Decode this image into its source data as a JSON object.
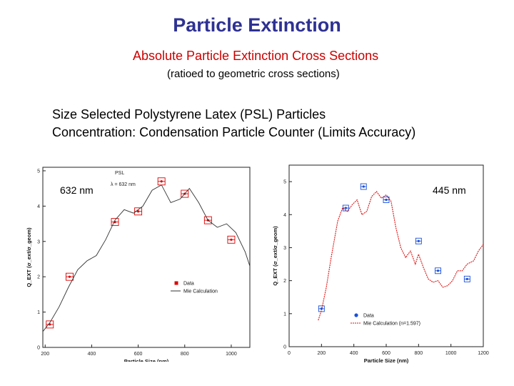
{
  "slide": {
    "title": "Particle Extinction",
    "subtitle": "Absolute Particle Extinction Cross Sections",
    "note": "(ratioed to geometric cross sections)",
    "desc_line1": "Size Selected Polystyrene Latex (PSL) Particles",
    "desc_line2": "Concentration: Condensation Particle Counter  (Limits Accuracy)",
    "label_left": "632 nm",
    "label_right": "445 nm"
  },
  "chart_data": [
    {
      "type": "scatter",
      "title": "PSL",
      "annotation": "λ = 632 nm",
      "xlabel": "Particle Size (nm)",
      "ylabel": "Q_EXT (σ_ext/σ_geom)",
      "xlim": [
        190,
        1080
      ],
      "ylim": [
        0,
        5.1
      ],
      "xticks": [
        200,
        400,
        600,
        800,
        1000
      ],
      "yticks": [
        0,
        1,
        2,
        3,
        4,
        5
      ],
      "legend_position": "lower-right",
      "colors": {
        "data": "#dd0000",
        "calc": "#333333"
      },
      "series": [
        {
          "name": "Data",
          "kind": "points",
          "x": [
            220,
            305,
            500,
            600,
            700,
            800,
            900,
            1000
          ],
          "y": [
            0.65,
            2.0,
            3.55,
            3.85,
            4.7,
            4.35,
            3.6,
            3.05
          ]
        },
        {
          "name": "Mie Calculation",
          "kind": "line",
          "x": [
            190,
            220,
            260,
            300,
            340,
            380,
            420,
            460,
            500,
            540,
            580,
            620,
            660,
            700,
            740,
            780,
            820,
            860,
            900,
            940,
            980,
            1020,
            1060,
            1080
          ],
          "y": [
            0.45,
            0.7,
            1.15,
            1.7,
            2.2,
            2.45,
            2.6,
            3.05,
            3.6,
            3.9,
            3.8,
            4.0,
            4.45,
            4.6,
            4.1,
            4.2,
            4.5,
            4.1,
            3.6,
            3.4,
            3.5,
            3.25,
            2.7,
            2.3
          ]
        }
      ]
    },
    {
      "type": "scatter",
      "xlabel": "Particle Size (nm)",
      "ylabel": "Q_EXT (σ_ext/σ_geom)",
      "xlim": [
        0,
        1200
      ],
      "ylim": [
        0,
        5.5
      ],
      "xticks": [
        0,
        200,
        400,
        600,
        800,
        1000,
        1200
      ],
      "yticks": [
        0,
        1,
        2,
        3,
        4,
        5
      ],
      "legend_position": "lower-left",
      "colors": {
        "data": "#1a4fd8",
        "calc": "#dd1111"
      },
      "series": [
        {
          "name": "Data",
          "kind": "points",
          "x": [
            200,
            350,
            460,
            600,
            800,
            920,
            1100
          ],
          "y": [
            1.15,
            4.2,
            4.85,
            4.45,
            3.2,
            2.3,
            2.05
          ]
        },
        {
          "name": "Mie Calculation (n=1.597)",
          "kind": "line",
          "x": [
            180,
            200,
            230,
            260,
            300,
            330,
            360,
            390,
            420,
            450,
            480,
            510,
            540,
            570,
            600,
            630,
            660,
            690,
            720,
            750,
            780,
            800,
            830,
            860,
            890,
            920,
            950,
            980,
            1010,
            1040,
            1070,
            1100,
            1140,
            1170,
            1200
          ],
          "y": [
            0.8,
            1.1,
            1.8,
            2.7,
            3.8,
            4.2,
            4.1,
            4.3,
            4.45,
            4.0,
            4.1,
            4.55,
            4.7,
            4.5,
            4.6,
            4.4,
            3.6,
            3.0,
            2.7,
            2.9,
            2.5,
            2.8,
            2.4,
            2.05,
            1.95,
            2.0,
            1.8,
            1.85,
            2.0,
            2.3,
            2.3,
            2.5,
            2.6,
            2.9,
            3.1
          ]
        }
      ]
    }
  ]
}
